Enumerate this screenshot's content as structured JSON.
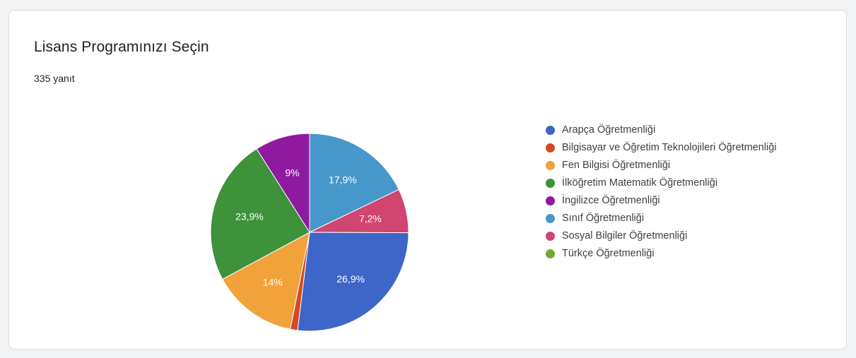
{
  "header": {
    "title": "Lisans Programınızı Seçin",
    "response_count": "335 yanıt"
  },
  "chart_data": {
    "type": "pie",
    "title": "Lisans Programınızı Seçin",
    "total_responses": 335,
    "start_angle_deg": 0,
    "slices": [
      {
        "label": "Sınıf Öğretmenliği",
        "value": 17.9,
        "display": "17,9%",
        "color": "#4698cb"
      },
      {
        "label": "Sosyal Bilgiler Öğretmenliği",
        "value": 7.2,
        "display": "7,2%",
        "color": "#d04670"
      },
      {
        "label": "Arapça Öğretmenliği",
        "value": 26.9,
        "display": "26,9%",
        "color": "#3e66c8"
      },
      {
        "label": "Bilgisayar ve Öğretim Teknolojileri Öğretmenliği",
        "value": 1.2,
        "display": "",
        "color": "#d54a26"
      },
      {
        "label": "Fen Bilgisi Öğretmenliği",
        "value": 14,
        "display": "14%",
        "color": "#f1a23a"
      },
      {
        "label": "İlköğretim Matematik Öğretmenliği",
        "value": 23.9,
        "display": "23,9%",
        "color": "#3e9239"
      },
      {
        "label": "İngilizce Öğretmenliği",
        "value": 9,
        "display": "9%",
        "color": "#8f1a9f"
      }
    ],
    "legend": {
      "position": "right",
      "items": [
        {
          "label": "Arapça Öğretmenliği",
          "color": "#3e66c8"
        },
        {
          "label": "Bilgisayar ve Öğretim Teknolojileri Öğretmenliği",
          "color": "#d54a26"
        },
        {
          "label": "Fen Bilgisi Öğretmenliği",
          "color": "#f1a23a"
        },
        {
          "label": "İlköğretim Matematik Öğretmenliği",
          "color": "#3e9239"
        },
        {
          "label": "İngilizce Öğretmenliği",
          "color": "#8f1a9f"
        },
        {
          "label": "Sınıf Öğretmenliği",
          "color": "#4698cb"
        },
        {
          "label": "Sosyal Bilgiler Öğretmenliği",
          "color": "#d04670"
        },
        {
          "label": "Türkçe Öğretmenliği",
          "color": "#72a833"
        }
      ]
    }
  }
}
